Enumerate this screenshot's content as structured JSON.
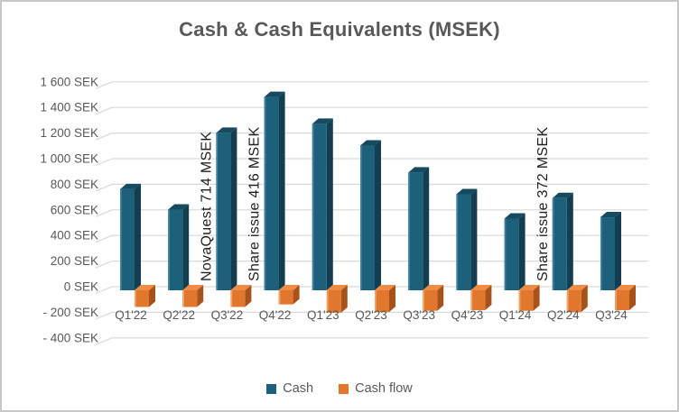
{
  "chart_data": {
    "type": "bar",
    "style": "3d-column",
    "title": "Cash & Cash Equivalents (MSEK)",
    "xlabel": "",
    "ylabel": "",
    "ylim": [
      -400,
      1600
    ],
    "ytick_step": 200,
    "grid": true,
    "legend_position": "bottom",
    "categories": [
      "Q1'22",
      "Q2'22",
      "Q3'22",
      "Q4'22",
      "Q1'23",
      "Q2'23",
      "Q3'23",
      "Q4'23",
      "Q1'24",
      "Q2'24",
      "Q3'24"
    ],
    "ytick_labels": [
      "1 600 SEK",
      "1 400 SEK",
      "1 200 SEK",
      "1 000 SEK",
      "800 SEK",
      "600 SEK",
      "400 SEK",
      "200 SEK",
      "0 SEK",
      "- 200 SEK",
      "- 400 SEK"
    ],
    "series": [
      {
        "name": "Cash",
        "values": [
          790,
          630,
          1230,
          1510,
          1300,
          1130,
          920,
          750,
          560,
          720,
          570
        ],
        "color": "#1d607b",
        "color_side": "#123e50",
        "color_top": "#164a5f",
        "color_highlight": "#41809e"
      },
      {
        "name": "Cash flow",
        "values": [
          -130,
          -130,
          -130,
          -110,
          -175,
          -170,
          -160,
          -155,
          -160,
          -170,
          -155
        ],
        "color": "#e1762d",
        "color_side": "#a8521b",
        "color_top": "#ee8b45",
        "color_highlight": "#f0a468"
      }
    ],
    "annotations": [
      {
        "text": "NovaQuest 714 MSEK",
        "category": "Q3'22"
      },
      {
        "text": "Share issue 416 MSEK",
        "category": "Q4'22"
      },
      {
        "text": "Share issue 372 MSEK",
        "category": "Q2'24"
      }
    ],
    "colors": {
      "axis_text": "#595959",
      "gridline": "#d9d9d9",
      "annotation_text": "#1f1f1f",
      "title_text": "#595959",
      "frame_border": "#c7c7c7"
    }
  }
}
